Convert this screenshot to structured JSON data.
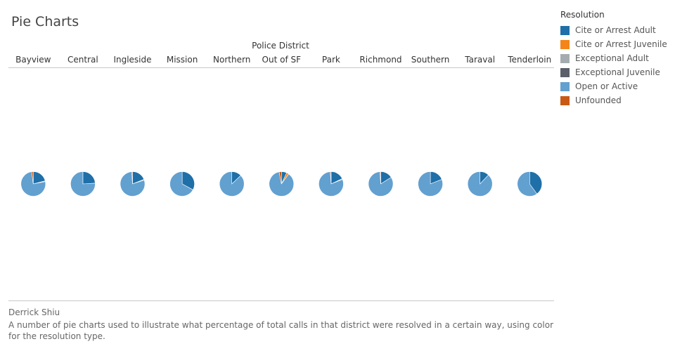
{
  "page": {
    "title": "Pie Charts",
    "author": "Derrick Shiu",
    "caption": "A number of pie charts used to illustrate what percentage of total calls in that district were resolved in a certain way, using color for the resolution type."
  },
  "legend": {
    "title": "Resolution",
    "items": [
      {
        "label": "Cite or Arrest Adult",
        "color": "#1f6fa8"
      },
      {
        "label": "Cite or Arrest Juvenile",
        "color": "#f58518"
      },
      {
        "label": "Exceptional Adult",
        "color": "#a5acaf"
      },
      {
        "label": "Exceptional Juvenile",
        "color": "#5a5f6a"
      },
      {
        "label": "Open or Active",
        "color": "#62a0d0"
      },
      {
        "label": "Unfounded",
        "color": "#c85a14"
      }
    ]
  },
  "chart_data": {
    "type": "pie",
    "column_title": "Police District",
    "categories": [
      "Bayview",
      "Central",
      "Ingleside",
      "Mission",
      "Northern",
      "Out of SF",
      "Park",
      "Richmond",
      "Southern",
      "Taraval",
      "Tenderloin"
    ],
    "series": [
      {
        "name": "Cite or Arrest Adult",
        "values": [
          0.21,
          0.24,
          0.19,
          0.33,
          0.13,
          0.07,
          0.18,
          0.16,
          0.19,
          0.12,
          0.4
        ]
      },
      {
        "name": "Cite or Arrest Juvenile",
        "values": [
          0.0,
          0.0,
          0.0,
          0.0,
          0.0,
          0.03,
          0.01,
          0.0,
          0.0,
          0.0,
          0.0
        ]
      },
      {
        "name": "Exceptional Adult",
        "values": [
          0.01,
          0.0,
          0.01,
          0.0,
          0.0,
          0.0,
          0.0,
          0.0,
          0.0,
          0.0,
          0.0
        ]
      },
      {
        "name": "Exceptional Juvenile",
        "values": [
          0.0,
          0.0,
          0.0,
          0.0,
          0.0,
          0.0,
          0.0,
          0.0,
          0.0,
          0.0,
          0.0
        ]
      },
      {
        "name": "Open or Active",
        "values": [
          0.76,
          0.76,
          0.79,
          0.67,
          0.87,
          0.87,
          0.8,
          0.83,
          0.81,
          0.88,
          0.6
        ]
      },
      {
        "name": "Unfounded",
        "values": [
          0.02,
          0.0,
          0.01,
          0.0,
          0.0,
          0.03,
          0.01,
          0.01,
          0.0,
          0.0,
          0.0
        ]
      }
    ]
  }
}
